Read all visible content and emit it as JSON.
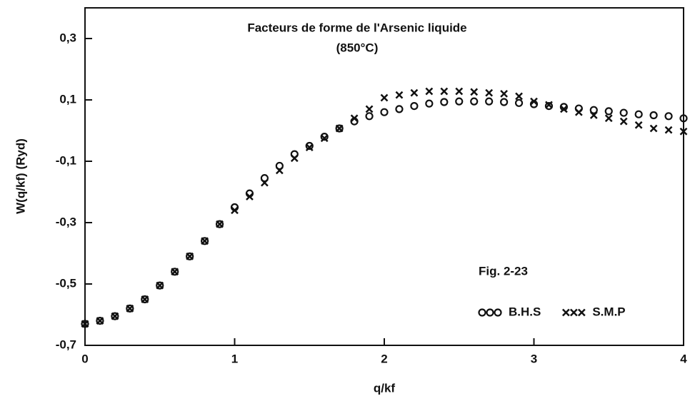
{
  "chart_data": {
    "type": "scatter",
    "title": "Facteurs de forme de l'Arsenic liquide",
    "subtitle": "(850°C)",
    "annotation": "Fig. 2-23",
    "x_label": "q/kf",
    "y_label": "W(q/kf)  (Ryd)",
    "x": [
      0,
      0.1,
      0.2,
      0.3,
      0.4,
      0.5,
      0.6,
      0.7,
      0.8,
      0.9,
      1.0,
      1.1,
      1.2,
      1.3,
      1.4,
      1.5,
      1.6,
      1.7,
      1.8,
      1.9,
      2.0,
      2.1,
      2.2,
      2.3,
      2.4,
      2.5,
      2.6,
      2.7,
      2.8,
      2.9,
      3.0,
      3.1,
      3.2,
      3.3,
      3.4,
      3.5,
      3.6,
      3.7,
      3.8,
      3.9,
      4.0
    ],
    "series": [
      {
        "name": "B.H.S",
        "legend_symbol": "ooo",
        "marker": "circle",
        "color": "#111111",
        "values": [
          -0.63,
          -0.62,
          -0.605,
          -0.58,
          -0.55,
          -0.505,
          -0.46,
          -0.41,
          -0.36,
          -0.305,
          -0.25,
          -0.205,
          -0.155,
          -0.115,
          -0.077,
          -0.05,
          -0.02,
          0.007,
          0.03,
          0.047,
          0.06,
          0.07,
          0.08,
          0.088,
          0.093,
          0.095,
          0.095,
          0.095,
          0.093,
          0.09,
          0.086,
          0.08,
          0.077,
          0.072,
          0.067,
          0.063,
          0.058,
          0.053,
          0.05,
          0.047,
          0.04
        ]
      },
      {
        "name": "S.M.P",
        "legend_symbol": "xxx",
        "marker": "cross",
        "color": "#111111",
        "values": [
          -0.63,
          -0.62,
          -0.605,
          -0.58,
          -0.55,
          -0.505,
          -0.46,
          -0.41,
          -0.36,
          -0.305,
          -0.26,
          -0.215,
          -0.17,
          -0.13,
          -0.09,
          -0.055,
          -0.025,
          0.007,
          0.04,
          0.07,
          0.107,
          0.116,
          0.123,
          0.128,
          0.128,
          0.128,
          0.126,
          0.123,
          0.12,
          0.112,
          0.095,
          0.084,
          0.07,
          0.06,
          0.05,
          0.04,
          0.03,
          0.018,
          0.007,
          0.002,
          -0.003
        ]
      }
    ],
    "xlim": [
      0,
      4
    ],
    "xticks": [
      0,
      1,
      2,
      3,
      4
    ],
    "ylim": [
      -0.7,
      0.4
    ],
    "yticks": [
      {
        "value": -0.7,
        "label": "-0,7"
      },
      {
        "value": -0.5,
        "label": "-0,5"
      },
      {
        "value": -0.3,
        "label": "-0,3"
      },
      {
        "value": -0.1,
        "label": "-0,1"
      },
      {
        "value": 0.1,
        "label": "0,1"
      },
      {
        "value": 0.3,
        "label": "0,3"
      }
    ],
    "grid": false
  }
}
